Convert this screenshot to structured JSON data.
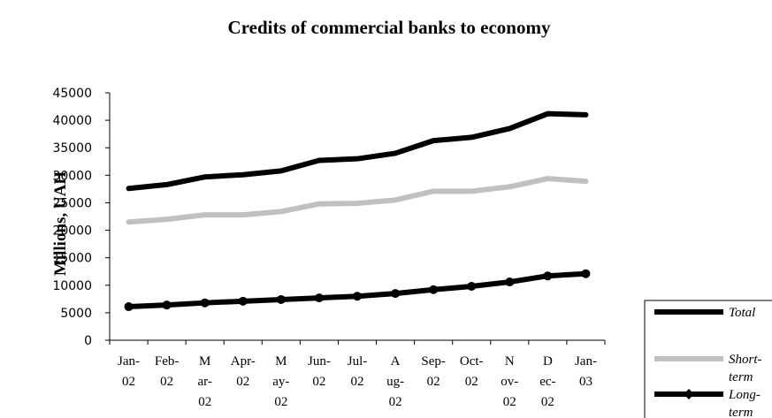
{
  "chart_data": {
    "type": "line",
    "title": "Credits of commercial banks to economy",
    "ylabel": "Millions, UAH",
    "xlabel": "",
    "ylim": [
      0,
      45000
    ],
    "yticks": [
      "45000",
      "40000",
      "35000",
      "30000",
      "25000",
      "20000",
      "15000",
      "10000",
      "5000",
      "0"
    ],
    "categories": [
      [
        "Jan-",
        "02"
      ],
      [
        "Feb-",
        "02"
      ],
      [
        "M",
        "ar-",
        "02"
      ],
      [
        "Apr-",
        "02"
      ],
      [
        "M",
        "ay-",
        "02"
      ],
      [
        "Jun-",
        "02"
      ],
      [
        "Jul-",
        "02"
      ],
      [
        "A",
        "ug-",
        "02"
      ],
      [
        "Sep-",
        "02"
      ],
      [
        "Oct-",
        "02"
      ],
      [
        "N",
        "ov-",
        "02"
      ],
      [
        "D",
        "ec-",
        "02"
      ],
      [
        "Jan-",
        "03"
      ]
    ],
    "series": [
      {
        "name": [
          "Total"
        ],
        "color": "#000000",
        "markers": false,
        "values": [
          27600,
          28300,
          29700,
          30100,
          30800,
          32700,
          33000,
          34000,
          36300,
          36900,
          38500,
          41200,
          41000
        ]
      },
      {
        "name": [
          "Short-",
          "term"
        ],
        "color": "#c0c0c0",
        "markers": false,
        "values": [
          21500,
          22000,
          22800,
          22800,
          23400,
          24800,
          24900,
          25500,
          27100,
          27100,
          27900,
          29400,
          28900
        ]
      },
      {
        "name": [
          "Long-",
          "term"
        ],
        "color": "#000000",
        "markers": true,
        "values": [
          6100,
          6400,
          6800,
          7100,
          7400,
          7700,
          8000,
          8500,
          9200,
          9800,
          10600,
          11700,
          12100
        ]
      }
    ],
    "legend_position": "bottom-right",
    "grid": false
  }
}
